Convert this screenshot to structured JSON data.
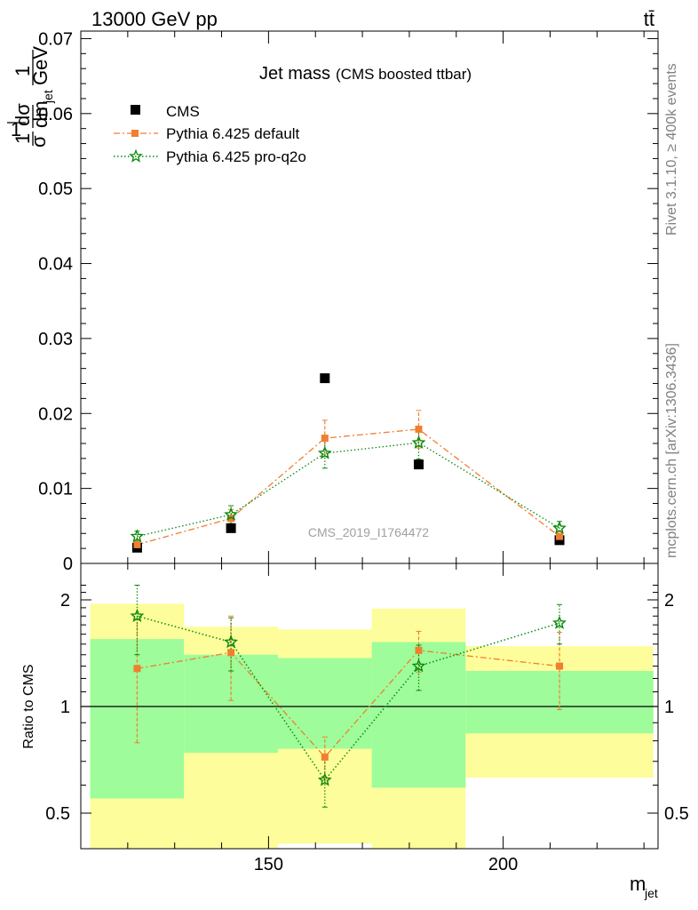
{
  "header": {
    "left": "13000 GeV pp",
    "right": "tt̄"
  },
  "side_text": {
    "rivet": "Rivet 3.1.10, ≥ 400k events",
    "mcplots": "mcplots.cern.ch [arXiv:1306.3436]"
  },
  "watermark": "CMS_2019_I1764472",
  "colors": {
    "data": "#000000",
    "default": "#f07f30",
    "proq2o": "#0a8a0a",
    "band_inner": "#9efc9a",
    "band_outer": "#fdfd9b"
  },
  "chart_data": [
    {
      "type": "scatter",
      "title": "Jet mass",
      "subtitle": "(CMS boosted ttbar)",
      "ylabel": "1/σ dσ/dm_jet 1/GeV",
      "xlim": [
        110,
        233
      ],
      "ylim": [
        0,
        0.071
      ],
      "yticks": [
        0,
        0.01,
        0.02,
        0.03,
        0.04,
        0.05,
        0.06,
        0.07
      ],
      "ytick_labels": [
        "0",
        "0.01",
        "0.02",
        "0.03",
        "0.04",
        "0.05",
        "0.06",
        "0.07"
      ],
      "legend_position": "top-left",
      "x": [
        122,
        142,
        162,
        182,
        212
      ],
      "series": [
        {
          "name": "CMS",
          "values": [
            0.0021,
            0.0047,
            0.0247,
            0.0132,
            0.0031
          ]
        },
        {
          "name": "Pythia 6.425 default",
          "values": [
            0.0025,
            0.006,
            0.0167,
            0.0179,
            0.0036
          ],
          "errors": [
            0.0006,
            0.0012,
            0.0024,
            0.0025,
            0.0008
          ]
        },
        {
          "name": "Pythia 6.425 pro-q2o",
          "values": [
            0.0036,
            0.0065,
            0.0147,
            0.0161,
            0.0047
          ],
          "errors": [
            0.0007,
            0.0012,
            0.002,
            0.0022,
            0.0009
          ]
        }
      ]
    },
    {
      "type": "scatter",
      "xlabel": "m_jet",
      "ylabel": "Ratio to CMS",
      "xlim": [
        110,
        233
      ],
      "ylim": [
        0.4,
        2.3
      ],
      "xticks": [
        150,
        200
      ],
      "xtick_labels": [
        "150",
        "200"
      ],
      "yticks": [
        0.5,
        1,
        2
      ],
      "ytick_labels": [
        "0.5",
        "1",
        "2"
      ],
      "bins": [
        {
          "lo": 112,
          "hi": 132,
          "inner": [
            0.55,
            1.55
          ],
          "outer": [
            0.2,
            1.95
          ]
        },
        {
          "lo": 132,
          "hi": 152,
          "inner": [
            0.74,
            1.4
          ],
          "outer": [
            0.2,
            1.68
          ]
        },
        {
          "lo": 152,
          "hi": 172,
          "inner": [
            0.76,
            1.37
          ],
          "outer": [
            0.41,
            1.65
          ]
        },
        {
          "lo": 172,
          "hi": 192,
          "inner": [
            0.59,
            1.52
          ],
          "outer": [
            0.2,
            1.89
          ]
        },
        {
          "lo": 192,
          "hi": 232,
          "inner": [
            0.84,
            1.26
          ],
          "outer": [
            0.63,
            1.48
          ]
        }
      ],
      "x": [
        122,
        142,
        162,
        182,
        212
      ],
      "series": [
        {
          "name": "Pythia 6.425 default",
          "values": [
            1.28,
            1.42,
            0.72,
            1.44,
            1.3
          ],
          "errors": [
            0.49,
            0.38,
            0.1,
            0.19,
            0.32
          ]
        },
        {
          "name": "Pythia 6.425 pro-q2o",
          "values": [
            1.8,
            1.52,
            0.62,
            1.3,
            1.72
          ],
          "errors": [
            0.4,
            0.26,
            0.1,
            0.19,
            0.22
          ]
        }
      ]
    }
  ]
}
